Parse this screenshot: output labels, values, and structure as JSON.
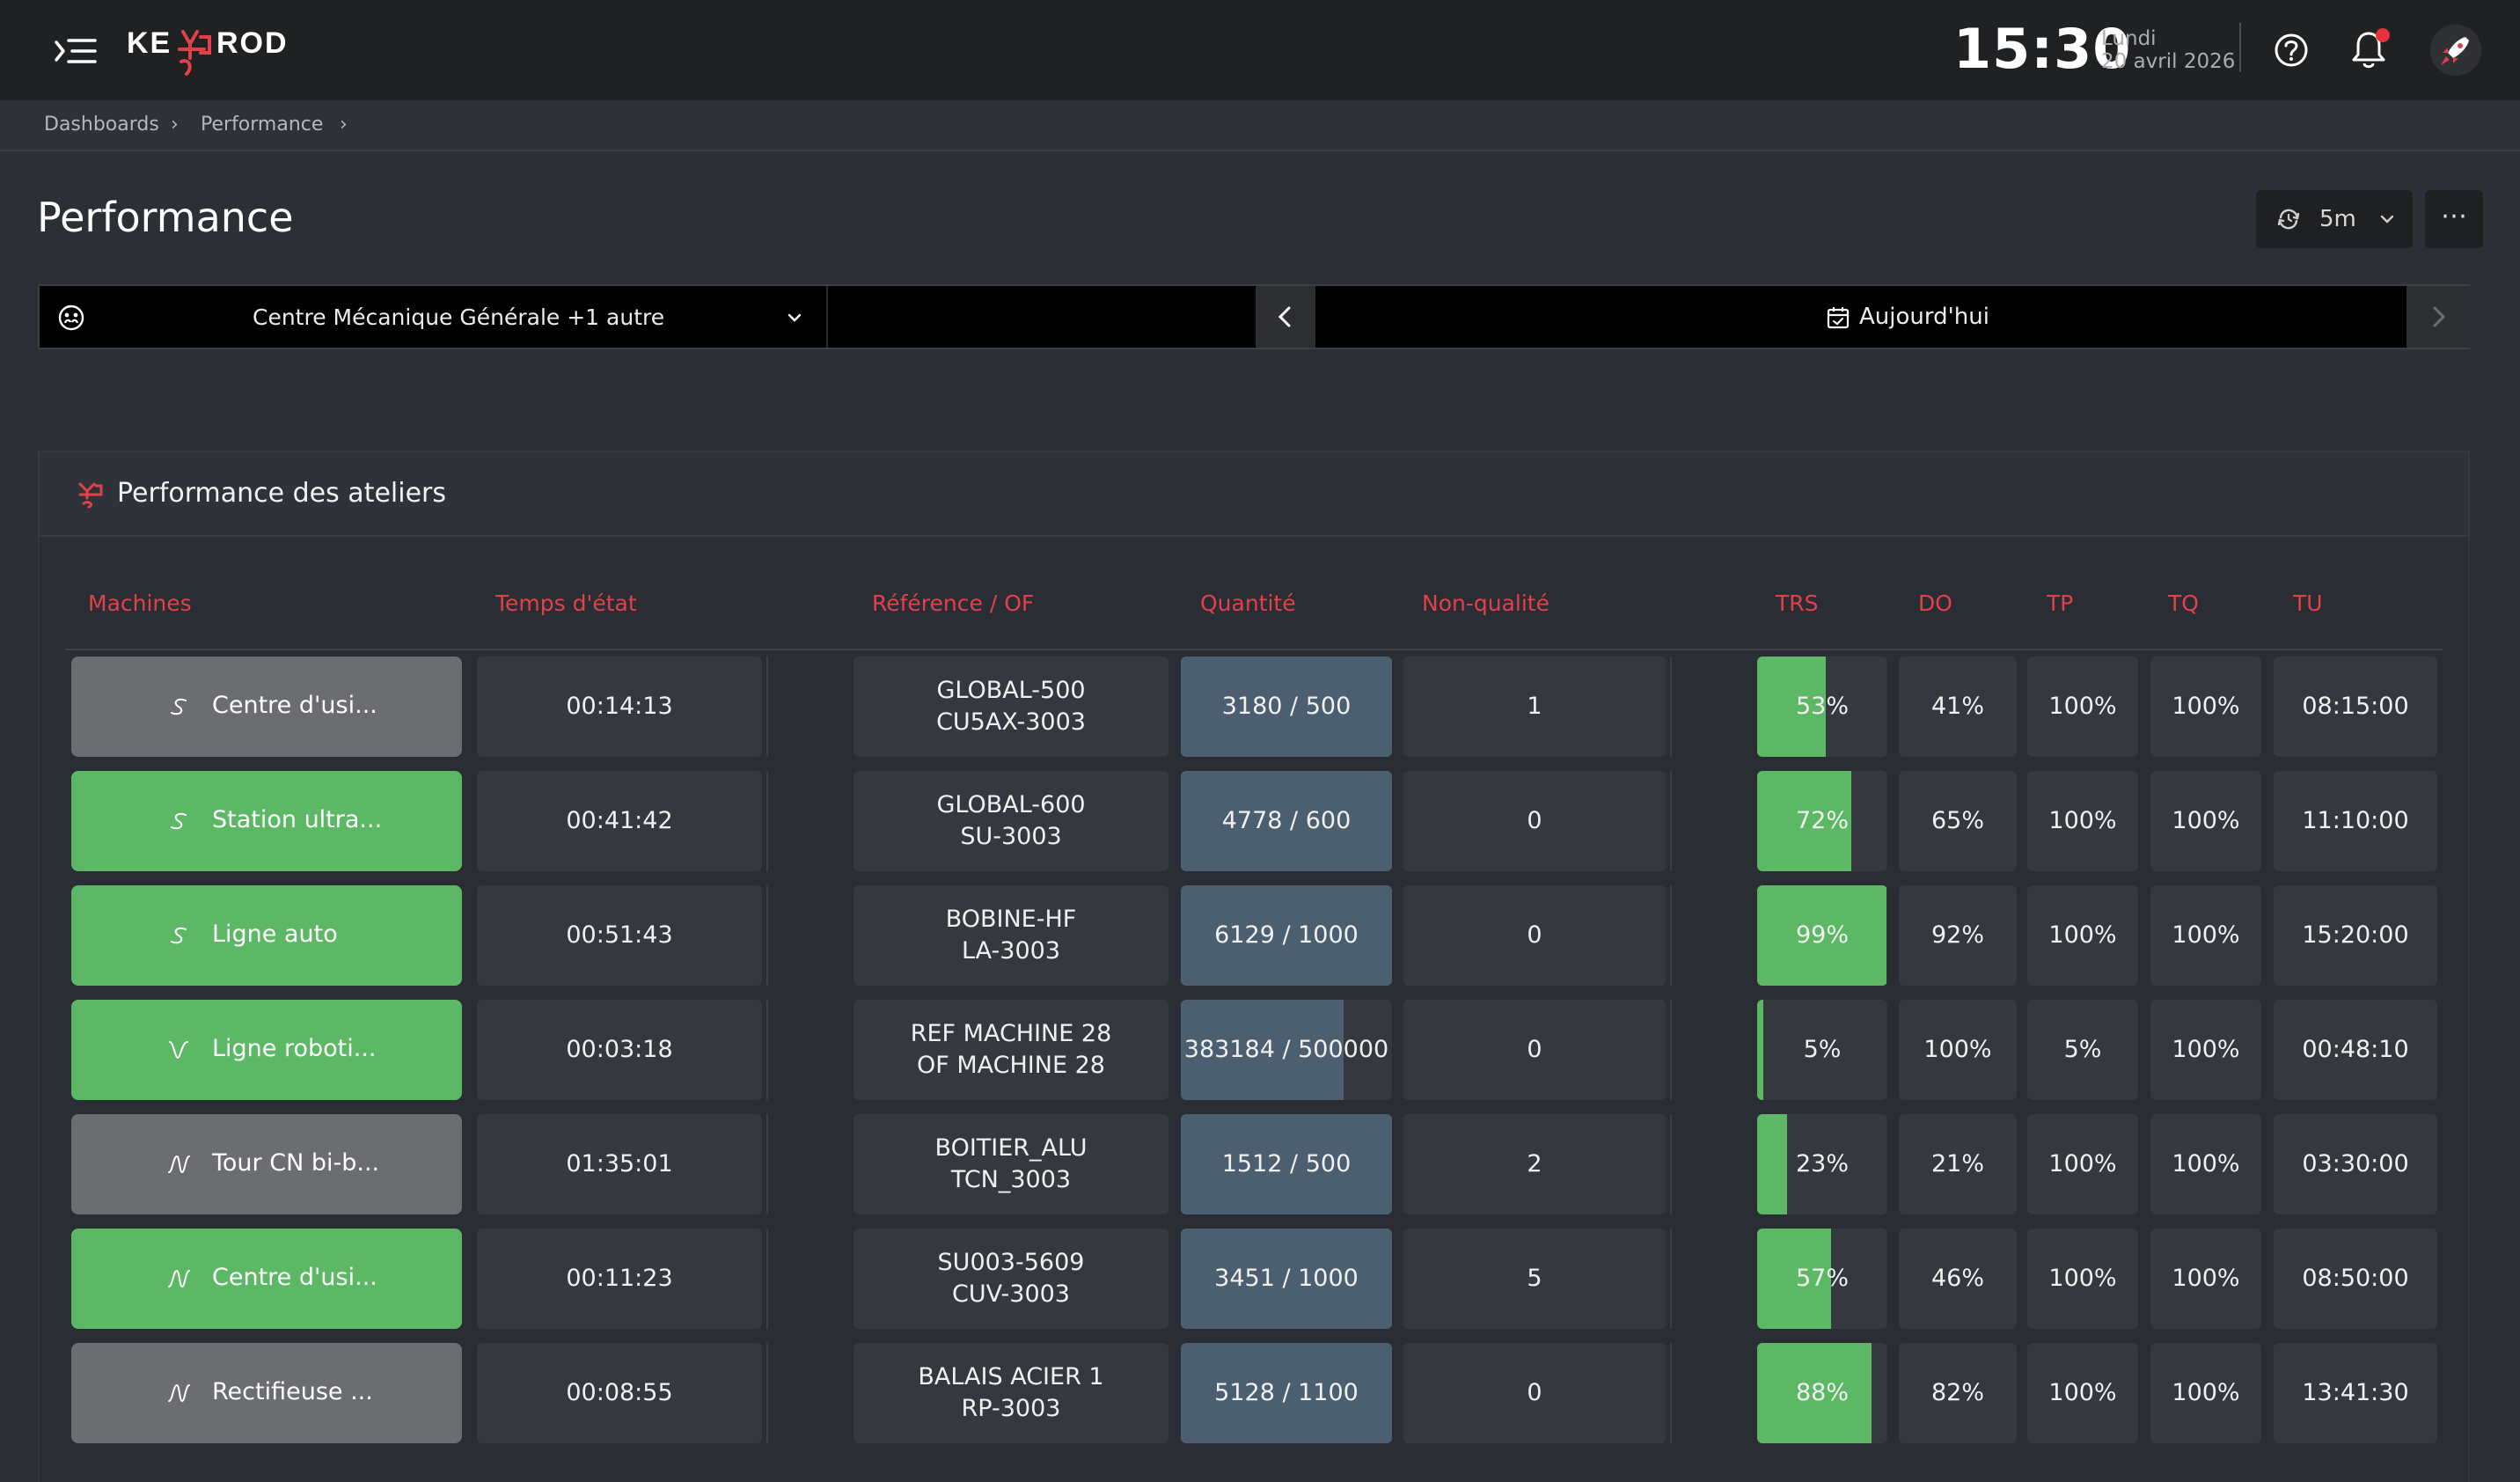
{
  "header": {
    "clock": "15:30",
    "day": "Lundi",
    "date": "20 avril 2026",
    "logo_text": "KEYPROD"
  },
  "breadcrumb": [
    "Dashboards",
    "Performance"
  ],
  "page": {
    "title": "Performance",
    "refresh_interval": "5m"
  },
  "filters": {
    "site": "Centre Mécanique Générale +1 autre",
    "period": "Aujourd'hui"
  },
  "panel": {
    "title": "Performance des ateliers",
    "columns": {
      "machines": "Machines",
      "state_time": "Temps d'état",
      "reference": "Référence / OF",
      "quantity": "Quantité",
      "non_quality": "Non-qualité",
      "trs": "TRS",
      "do": "DO",
      "tp": "TP",
      "tq": "TQ",
      "tu": "TU"
    }
  },
  "colors": {
    "accent_red": "#e0414a",
    "status_green": "#5cb865",
    "status_grey": "#6b6d71",
    "quantity_fill": "#4c5f70"
  },
  "rows": [
    {
      "machine": "Centre d'usi...",
      "status": "grey",
      "icon": "s-curve-icon",
      "state_time": "00:14:13",
      "ref": "GLOBAL-500",
      "of": "CU5AX-3003",
      "quantity": "3180 / 500",
      "qty_ratio": 1.0,
      "non_quality": "1",
      "trs": "53%",
      "trs_value": 0.53,
      "do": "41%",
      "tp": "100%",
      "tq": "100%",
      "tu": "08:15:00"
    },
    {
      "machine": "Station ultra...",
      "status": "green",
      "icon": "s-curve-icon",
      "state_time": "00:41:42",
      "ref": "GLOBAL-600",
      "of": "SU-3003",
      "quantity": "4778 / 600",
      "qty_ratio": 1.0,
      "non_quality": "0",
      "trs": "72%",
      "trs_value": 0.72,
      "do": "65%",
      "tp": "100%",
      "tq": "100%",
      "tu": "11:10:00"
    },
    {
      "machine": "Ligne auto",
      "status": "green",
      "icon": "s-curve-icon",
      "state_time": "00:51:43",
      "ref": "BOBINE-HF",
      "of": "LA-3003",
      "quantity": "6129 / 1000",
      "qty_ratio": 1.0,
      "non_quality": "0",
      "trs": "99%",
      "trs_value": 0.99,
      "do": "92%",
      "tp": "100%",
      "tq": "100%",
      "tu": "15:20:00"
    },
    {
      "machine": "Ligne roboti...",
      "status": "green",
      "icon": "v-wave-icon",
      "state_time": "00:03:18",
      "ref": "REF MACHINE 28",
      "of": "OF MACHINE 28",
      "quantity": "383184 / 500000",
      "qty_ratio": 0.77,
      "non_quality": "0",
      "trs": "5%",
      "trs_value": 0.05,
      "do": "100%",
      "tp": "5%",
      "tq": "100%",
      "tu": "00:48:10"
    },
    {
      "machine": "Tour CN bi-b...",
      "status": "grey",
      "icon": "n-wave-icon",
      "state_time": "01:35:01",
      "ref": "BOITIER_ALU",
      "of": "TCN_3003",
      "quantity": "1512 / 500",
      "qty_ratio": 1.0,
      "non_quality": "2",
      "trs": "23%",
      "trs_value": 0.23,
      "do": "21%",
      "tp": "100%",
      "tq": "100%",
      "tu": "03:30:00"
    },
    {
      "machine": "Centre d'usi...",
      "status": "green",
      "icon": "n-wave-icon",
      "state_time": "00:11:23",
      "ref": "SU003-5609",
      "of": "CUV-3003",
      "quantity": "3451 / 1000",
      "qty_ratio": 1.0,
      "non_quality": "5",
      "trs": "57%",
      "trs_value": 0.57,
      "do": "46%",
      "tp": "100%",
      "tq": "100%",
      "tu": "08:50:00"
    },
    {
      "machine": "Rectifieuse ...",
      "status": "grey",
      "icon": "n-wave-icon",
      "state_time": "00:08:55",
      "ref": "BALAIS ACIER 1",
      "of": "RP-3003",
      "quantity": "5128 / 1100",
      "qty_ratio": 1.0,
      "non_quality": "0",
      "trs": "88%",
      "trs_value": 0.88,
      "do": "82%",
      "tp": "100%",
      "tq": "100%",
      "tu": "13:41:30"
    }
  ]
}
